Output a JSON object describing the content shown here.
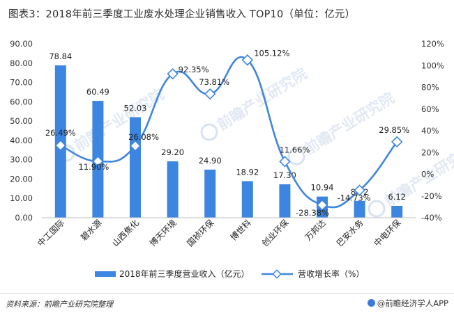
{
  "title": "图表3：2018年前三季度工业废水处理企业销售收入 TOP10（单位：亿元）",
  "source": "资料来源：前瞻产业研究院整理",
  "brand": "@前瞻经济学人APP",
  "watermark": "前瞻产业研究院",
  "colors": {
    "bar": "#3c85e0",
    "line": "#3f86de",
    "marker_fill": "#ffffff"
  },
  "chart_data": {
    "type": "bar",
    "categories": [
      "中工国际",
      "碧水源",
      "山西焦化",
      "博天环境",
      "国祯环保",
      "博世科",
      "创业环保",
      "万邦达",
      "巴安水务",
      "中电环保"
    ],
    "series": [
      {
        "name": "2018年前三季度营业收入（亿元）",
        "type": "bar",
        "axis": "left",
        "values": [
          78.84,
          60.49,
          52.03,
          29.2,
          24.9,
          18.92,
          17.3,
          10.94,
          8.72,
          6.12
        ],
        "labels": [
          "78.84",
          "60.49",
          "52.03",
          "29.20",
          "24.90",
          "18.92",
          "17.30",
          "10.94",
          "8.72",
          "6.12"
        ]
      },
      {
        "name": "营收增长率（%）",
        "type": "line",
        "axis": "right",
        "values": [
          26.49,
          11.9,
          26.08,
          92.35,
          73.81,
          105.12,
          11.66,
          -28.38,
          -14.73,
          29.85
        ],
        "labels": [
          "26.49%",
          "11.90%",
          "26.08%",
          "92.35%",
          "73.81%",
          "105.12%",
          "11.66%",
          "-28.38%",
          "-14.73%",
          "29.85%"
        ]
      }
    ],
    "y_left": {
      "min": 0,
      "max": 90,
      "ticks": [
        "0.00",
        "10.00",
        "20.00",
        "30.00",
        "40.00",
        "50.00",
        "60.00",
        "70.00",
        "80.00",
        "90.00"
      ]
    },
    "y_right": {
      "min": -40,
      "max": 120,
      "ticks": [
        "-40%",
        "-20%",
        "0%",
        "20%",
        "40%",
        "60%",
        "80%",
        "100%",
        "120%"
      ]
    },
    "legend_position": "bottom",
    "grid": false
  }
}
